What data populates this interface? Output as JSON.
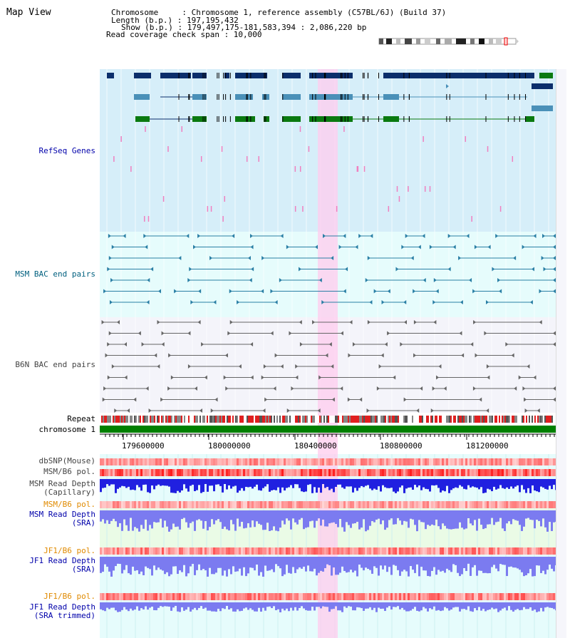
{
  "title": "Map View",
  "info": {
    "chromosome": "Chromosome     : Chromosome 1, reference assembly (C57BL/6J) (Build 37)",
    "length": "Length (b.p.) : 197,195,432",
    "show": "Show (b.p.) : 179,497,175-181,583,394 : 2,086,220 bp",
    "coverage": "Read coverage check span : 10,000"
  },
  "tracks": {
    "refseq": "RefSeq Genes",
    "msm_bac": "MSM BAC end pairs",
    "b6n_bac": "B6N BAC end pairs",
    "repeat": "Repeat",
    "chromosome": "chromosome 1",
    "dbsnp": "dbSNP(Mouse)",
    "msm_b6_pol": "MSM/B6 pol.",
    "msm_depth_cap_1": "MSM Read Depth",
    "msm_depth_cap_2": "(Capillary)",
    "msm_b6_pol_2": "MSM/B6 pol.",
    "msm_depth_sra_1": "MSM Read Depth",
    "msm_depth_sra_2": "(SRA)",
    "jf1_b6_pol": "JF1/B6 pol.",
    "jf1_depth_sra_1": "JF1 Read Depth",
    "jf1_depth_sra_2": "(SRA)",
    "jf1_b6_pol_2": "JF1/B6 pol.",
    "jf1_depth_trim_1": "JF1 Read Depth",
    "jf1_depth_trim_2": "(SRA trimmed)"
  },
  "ruler": {
    "ticks": [
      "179600000",
      "180000000",
      "180400000",
      "180800000",
      "181200000"
    ]
  },
  "colors": {
    "refseq_bg": "#d6eef9",
    "msm_bg": "#e6fcfc",
    "b6n_bg": "#f4f4fa",
    "highlight": "#ffccee",
    "chrom_bar": "#008000",
    "gene_dark": "#0b2e6b",
    "gene_mid": "#4a90b8",
    "gene_green": "#0a7a10",
    "msm_line": "#2a7fa5",
    "b6n_line": "#666666",
    "depth_dark": "#2020e0",
    "depth_light": "#7b7bf0",
    "pol_red": "#f04040"
  }
}
